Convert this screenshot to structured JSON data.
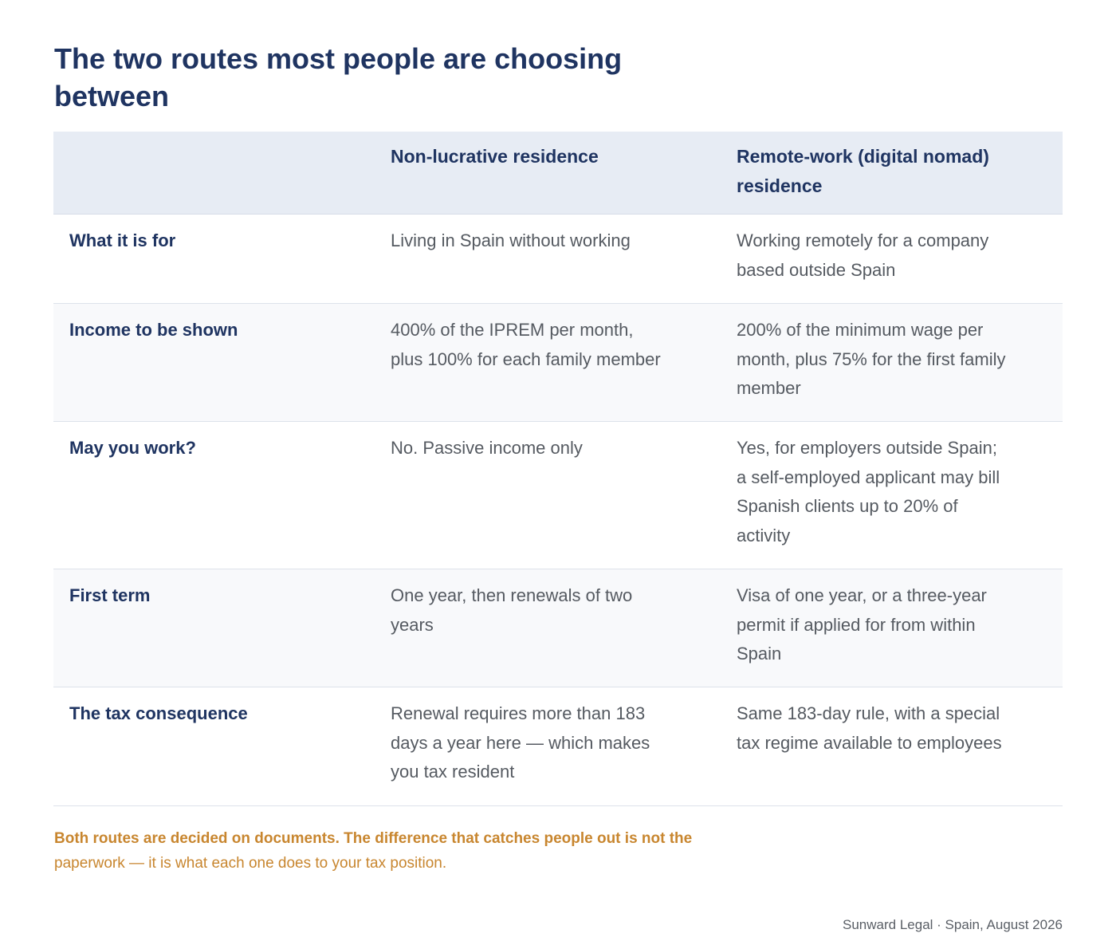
{
  "title": "The two routes most people are choosing between",
  "table": {
    "headers": [
      "",
      "Non-lucrative residence",
      "Remote-work (digital nomad) residence"
    ],
    "rows": [
      [
        "What it is for",
        "Living in Spain without working",
        "Working remotely for a company based outside Spain"
      ],
      [
        "Income to be shown",
        "400% of the IPREM per month, plus 100% for each family member",
        "200% of the minimum wage per month, plus 75% for the first family member"
      ],
      [
        "May you work?",
        "No. Passive income only",
        "Yes, for employers outside Spain; a self-employed applicant may bill Spanish clients up to 20% of activity"
      ],
      [
        "First term",
        "One year, then renewals of two years",
        "Visa of one year, or a three-year permit if applied for from within Spain"
      ],
      [
        "The tax consequence",
        "Renewal requires more than 183 days a year here — which makes you tax resident",
        "Same 183-day rule, with a special tax regime available to employees"
      ]
    ]
  },
  "note": {
    "bold": "Both routes are decided on documents. The difference that catches people out is not the",
    "regular": "paperwork — it is what each one does to your tax position."
  },
  "footer": "Sunward Legal · Spain, August 2026",
  "colors": {
    "heading": "#1f3461",
    "body_text": "#555a61",
    "accent_note": "#c8862f",
    "header_bg": "#e7ecf4",
    "alt_row_bg": "#f8f9fb"
  }
}
